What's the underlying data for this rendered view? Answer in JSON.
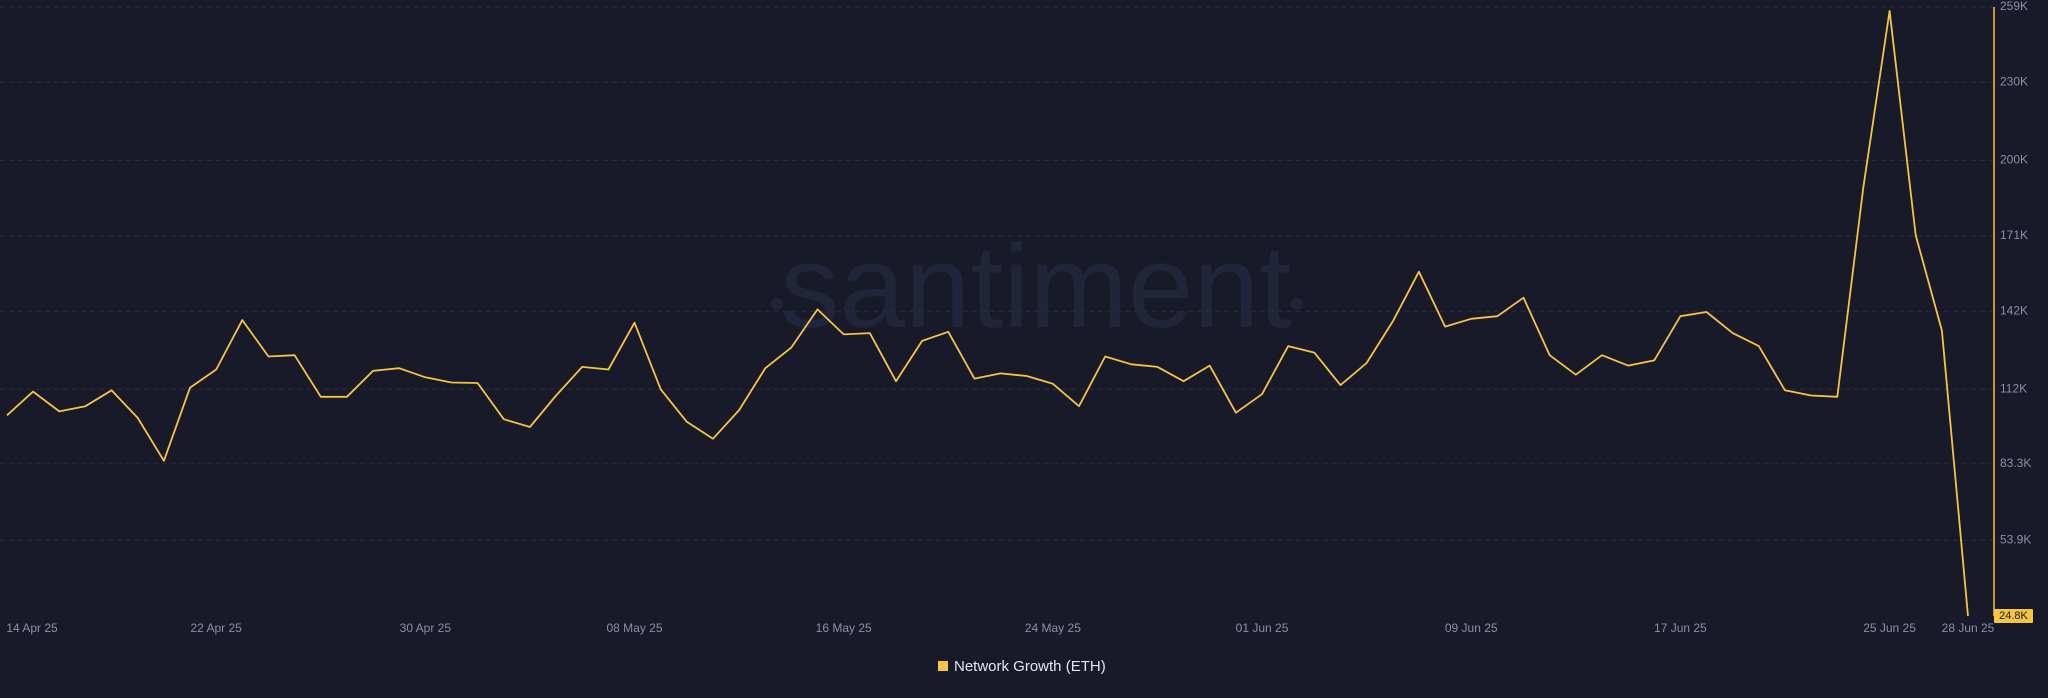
{
  "chart_data": {
    "type": "line",
    "watermark": "santiment",
    "categories": [
      "14 Apr 25",
      null,
      null,
      null,
      null,
      null,
      null,
      null,
      "22 Apr 25",
      null,
      null,
      null,
      null,
      null,
      null,
      null,
      "30 Apr 25",
      null,
      null,
      null,
      null,
      null,
      null,
      null,
      "08 May 25",
      null,
      null,
      null,
      null,
      null,
      null,
      null,
      "16 May 25",
      null,
      null,
      null,
      null,
      null,
      null,
      null,
      "24 May 25",
      null,
      null,
      null,
      null,
      null,
      null,
      null,
      "01 Jun 25",
      null,
      null,
      null,
      null,
      null,
      null,
      null,
      "09 Jun 25",
      null,
      null,
      null,
      null,
      null,
      null,
      null,
      "17 Jun 25",
      null,
      null,
      null,
      null,
      null,
      null,
      null,
      "25 Jun 25",
      null,
      null,
      "28 Jun 25"
    ],
    "series": [
      {
        "name": "Network Growth (ETH)",
        "color": "#f5c442",
        "values": [
          102000,
          111100,
          103500,
          105500,
          111600,
          101000,
          84500,
          112600,
          119600,
          138600,
          124600,
          125100,
          109100,
          109100,
          119100,
          120100,
          116600,
          114600,
          114400,
          100500,
          97500,
          109600,
          120600,
          119600,
          137600,
          112000,
          99500,
          93000,
          104000,
          120100,
          128100,
          142700,
          133100,
          133600,
          115100,
          130600,
          134100,
          116100,
          118100,
          117100,
          114100,
          105500,
          124600,
          121600,
          120600,
          115100,
          121100,
          103000,
          110100,
          128600,
          126100,
          113600,
          122100,
          138100,
          157200,
          136100,
          139100,
          140100,
          147200,
          125100,
          117600,
          125100,
          121100,
          123100,
          140100,
          141700,
          133600,
          128600,
          111600,
          109600,
          109100,
          189800,
          257500,
          171200,
          134600,
          24800
        ]
      }
    ],
    "last_value_label": "24.8K",
    "ylim": [
      24800,
      259000
    ],
    "yticks": [
      {
        "value": 259000,
        "label": "259K"
      },
      {
        "value": 230000,
        "label": "230K"
      },
      {
        "value": 200000,
        "label": "200K"
      },
      {
        "value": 171000,
        "label": "171K"
      },
      {
        "value": 142000,
        "label": "142K"
      },
      {
        "value": 112000,
        "label": "112K"
      },
      {
        "value": 83300,
        "label": "83.3K"
      },
      {
        "value": 53900,
        "label": "53.9K"
      }
    ],
    "grid": true
  }
}
